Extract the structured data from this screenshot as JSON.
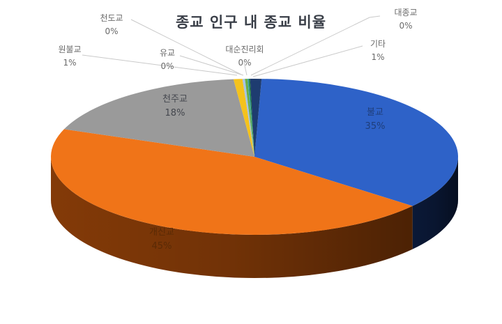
{
  "chart_data": {
    "type": "pie",
    "style": "3d",
    "title": "종교 인구 내 종교 비율",
    "slices": [
      {
        "label": "불교",
        "display": "35%",
        "value": 35.3,
        "color": "#2e62c8",
        "side": "#0b1a3a"
      },
      {
        "label": "개신교",
        "display": "45%",
        "value": 44.9,
        "color": "#f07418",
        "side": "#8a3d08"
      },
      {
        "label": "천주교",
        "display": "18%",
        "value": 17.6,
        "color": "#9a9a9a",
        "side": "#5a5a5a"
      },
      {
        "label": "원불교",
        "display": "1%",
        "value": 0.7,
        "color": "#f4c21c",
        "side": "#8a6d0c"
      },
      {
        "label": "천도교",
        "display": "0%",
        "value": 0.2,
        "color": "#a6c2e6",
        "side": "#5a6a80"
      },
      {
        "label": "유교",
        "display": "0%",
        "value": 0.2,
        "color": "#6aae48",
        "side": "#3a6028"
      },
      {
        "label": "대순진리회",
        "display": "0%",
        "value": 0.1,
        "color": "#3aa0a8",
        "side": "#205a60"
      },
      {
        "label": "대종교",
        "display": "0%",
        "value": 0.1,
        "color": "#1c7a3a",
        "side": "#0e4020"
      },
      {
        "label": "기타",
        "display": "1%",
        "value": 0.9,
        "color": "#1e3c70",
        "side": "#0a1428"
      }
    ],
    "start_angle_deg": -88,
    "direction": "clockwise",
    "legend": "none",
    "data_labels": "category name and percentage"
  },
  "labels": {
    "bulgyo": {
      "name": "불교",
      "pct": "35%"
    },
    "gaesingyo": {
      "name": "개신교",
      "pct": "45%"
    },
    "cheonjugyo": {
      "name": "천주교",
      "pct": "18%"
    },
    "wonbulgyo": {
      "name": "원불교",
      "pct": "1%"
    },
    "cheondogyo": {
      "name": "천도교",
      "pct": "0%"
    },
    "yugyo": {
      "name": "유교",
      "pct": "0%"
    },
    "daesun": {
      "name": "대순진리회",
      "pct": "0%"
    },
    "daejonggyo": {
      "name": "대종교",
      "pct": "0%"
    },
    "gita": {
      "name": "기타",
      "pct": "1%"
    }
  }
}
